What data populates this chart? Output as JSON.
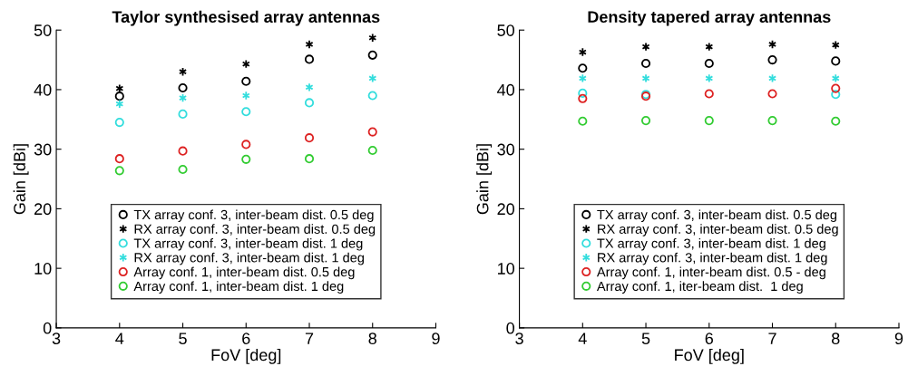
{
  "chart_data": [
    {
      "type": "scatter",
      "title": "Taylor synthesised array antennas",
      "xlabel": "FoV [deg]",
      "ylabel": "Gain [dBi]",
      "xlim": [
        3,
        9
      ],
      "xticks": [
        3,
        4,
        5,
        6,
        7,
        8,
        9
      ],
      "ylim": [
        0,
        50
      ],
      "yticks": [
        0,
        10,
        20,
        30,
        40,
        50
      ],
      "grid": false,
      "legend": "bottom",
      "x": [
        4,
        5,
        6,
        7,
        8
      ],
      "series": [
        {
          "name": "TX array conf. 3, inter-beam dist. 0.5 deg",
          "color": "#000000",
          "marker": "circle",
          "values": [
            38.9,
            40.3,
            41.4,
            45.1,
            45.8
          ]
        },
        {
          "name": "RX array conf. 3, inter-beam dist. 0.5 deg",
          "color": "#000000",
          "marker": "cross",
          "values": [
            40.2,
            43.0,
            44.3,
            47.6,
            48.7
          ]
        },
        {
          "name": "TX array conf. 3, inter-beam dist. 1 deg",
          "color": "#33dddd",
          "marker": "circle",
          "values": [
            34.5,
            35.9,
            36.3,
            37.8,
            39.0
          ]
        },
        {
          "name": "RX array conf. 3, inter-beam dist. 1 deg",
          "color": "#33dddd",
          "marker": "cross",
          "values": [
            37.6,
            38.6,
            39.0,
            40.4,
            41.9
          ]
        },
        {
          "name": "Array conf. 1, inter-beam dist. 0.5 deg",
          "color": "#dd2222",
          "marker": "circle",
          "values": [
            28.4,
            29.7,
            30.8,
            31.9,
            32.9
          ]
        },
        {
          "name": "Array conf. 1, inter-beam dist. 1 deg",
          "color": "#33cc33",
          "marker": "circle",
          "values": [
            26.4,
            26.6,
            28.3,
            28.4,
            29.8
          ]
        }
      ]
    },
    {
      "type": "scatter",
      "title": "Density tapered array antennas",
      "xlabel": "FoV [deg]",
      "ylabel": "Gain [dBi]",
      "xlim": [
        3,
        9
      ],
      "xticks": [
        3,
        4,
        5,
        6,
        7,
        8,
        9
      ],
      "ylim": [
        0,
        50
      ],
      "yticks": [
        0,
        10,
        20,
        30,
        40,
        50
      ],
      "grid": false,
      "legend": "bottom",
      "x": [
        4,
        5,
        6,
        7,
        8
      ],
      "series": [
        {
          "name": "TX array conf. 3, inter-beam dist. 0.5 deg",
          "color": "#000000",
          "marker": "circle",
          "values": [
            43.6,
            44.4,
            44.4,
            45.0,
            44.8
          ]
        },
        {
          "name": "RX array conf. 3, inter-beam dist. 0.5 deg",
          "color": "#000000",
          "marker": "cross",
          "values": [
            46.3,
            47.2,
            47.2,
            47.6,
            47.5
          ]
        },
        {
          "name": "TX array conf. 3, inter-beam dist. 1 deg",
          "color": "#33dddd",
          "marker": "circle",
          "values": [
            39.4,
            39.2,
            null,
            null,
            39.2
          ]
        },
        {
          "name": "RX array conf. 3, inter-beam dist. 1 deg",
          "color": "#33dddd",
          "marker": "cross",
          "values": [
            41.9,
            41.9,
            41.9,
            41.9,
            41.9
          ]
        },
        {
          "name": "Array conf. 1, inter-beam dist. 0.5 - deg",
          "color": "#dd2222",
          "marker": "circle",
          "values": [
            38.5,
            38.9,
            39.3,
            39.3,
            40.2
          ]
        },
        {
          "name": "Array conf. 1, iter-beam dist.  1 deg",
          "color": "#33cc33",
          "marker": "circle",
          "values": [
            34.7,
            34.8,
            34.8,
            34.8,
            34.7
          ]
        }
      ]
    }
  ]
}
